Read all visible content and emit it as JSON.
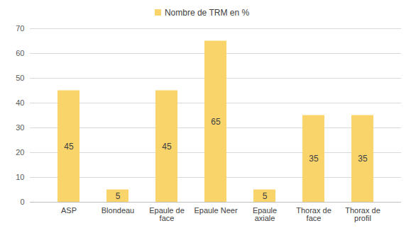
{
  "chart_data": {
    "type": "bar",
    "categories": [
      "ASP",
      "Blondeau",
      "Epaule de face",
      "Epaule Neer",
      "Epaule axiale",
      "Thorax de face",
      "Thorax de profil"
    ],
    "series": [
      {
        "name": "Nombre de TRM en %",
        "color": "#f9d46b",
        "values": [
          45,
          5,
          45,
          65,
          5,
          35,
          35
        ]
      }
    ],
    "ylim": [
      0,
      70
    ],
    "yticks": [
      0,
      10,
      20,
      30,
      40,
      50,
      60,
      70
    ],
    "grid": true,
    "legend": "top",
    "data_labels": true
  }
}
